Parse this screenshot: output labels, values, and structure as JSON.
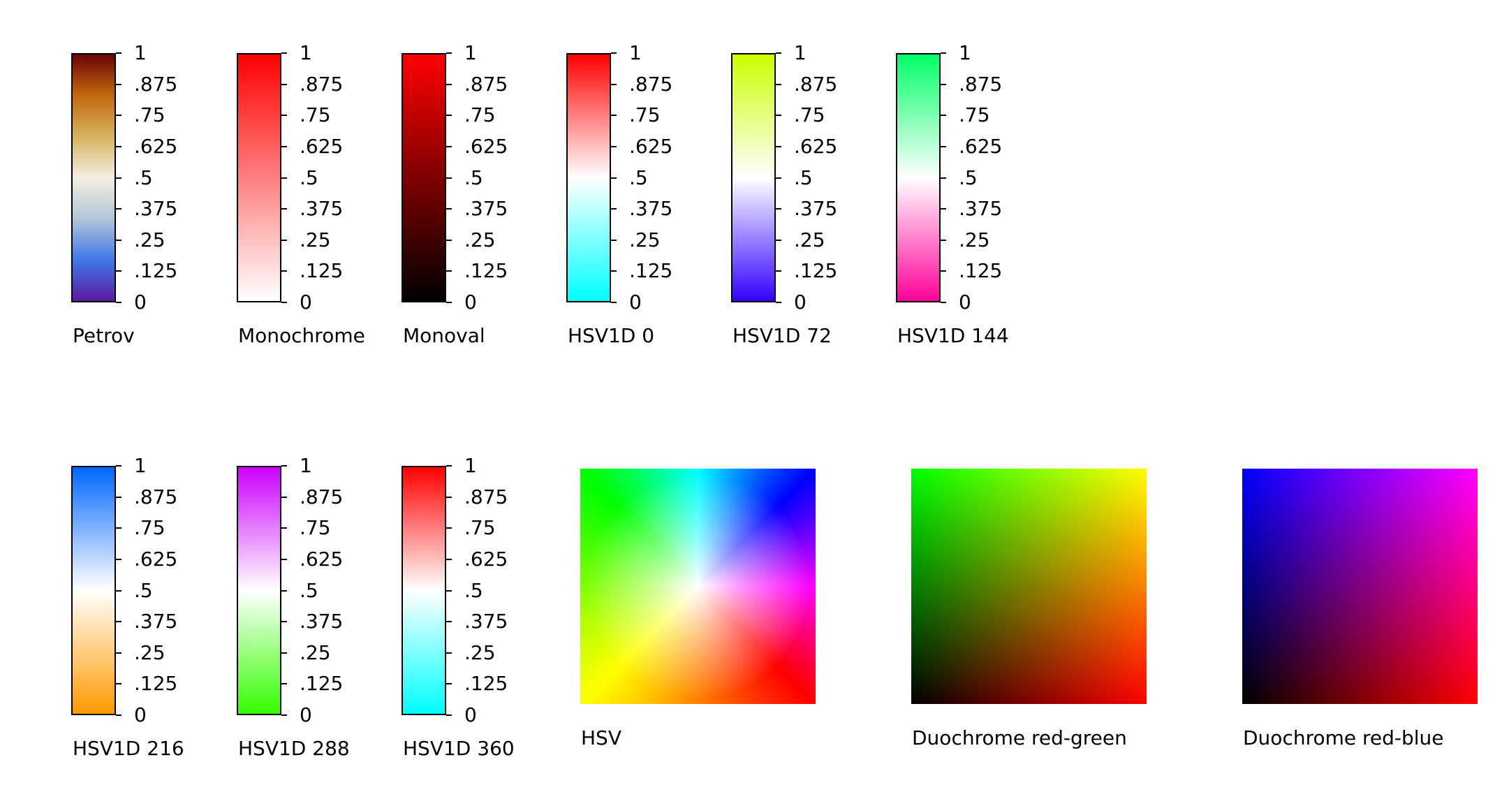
{
  "chart_data": {
    "type": "heatmap",
    "colormaps_1d": [
      {
        "name": "Petrov",
        "stops": [
          "#5a1b9e",
          "#3f78e8",
          "#b2c4d8",
          "#f3eedf",
          "#d6b260",
          "#c2680d",
          "#6a0208"
        ]
      },
      {
        "name": "Monochrome",
        "stops": [
          "#ffffff",
          "#ff0000"
        ]
      },
      {
        "name": "Monoval",
        "stops": [
          "#000000",
          "#ff0000"
        ]
      },
      {
        "name": "HSV1D 0",
        "stops": [
          "#00ffff",
          "#ffffff",
          "#ff0000"
        ]
      },
      {
        "name": "HSV1D 72",
        "stops": [
          "#3300ff",
          "#ffffff",
          "#ccff00"
        ]
      },
      {
        "name": "HSV1D 144",
        "stops": [
          "#ff0099",
          "#ffffff",
          "#00ff66"
        ]
      },
      {
        "name": "HSV1D 216",
        "stops": [
          "#ff9900",
          "#ffffff",
          "#0066ff"
        ]
      },
      {
        "name": "HSV1D 288",
        "stops": [
          "#33ff00",
          "#ffffff",
          "#cc00ff"
        ]
      },
      {
        "name": "HSV1D 360",
        "stops": [
          "#00ffff",
          "#ffffff",
          "#ff0000"
        ]
      }
    ],
    "ticks": [
      1,
      0.875,
      0.75,
      0.625,
      0.5,
      0.375,
      0.25,
      0.125,
      0
    ],
    "tick_labels": [
      "1",
      ".875",
      ".75",
      ".625",
      ".5",
      ".375",
      ".25",
      ".125",
      "0"
    ],
    "colormaps_2d": [
      {
        "name": "HSV",
        "kind": "hsv"
      },
      {
        "name": "Duochrome red-green",
        "kind": "duo",
        "x_color": "#ff0000",
        "y_color": "#00ff00"
      },
      {
        "name": "Duochrome red-blue",
        "kind": "duo",
        "x_color": "#ff0000",
        "y_color": "#0000ff"
      }
    ]
  }
}
